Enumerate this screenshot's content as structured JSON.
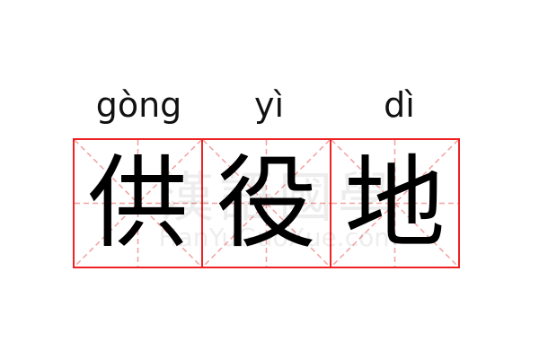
{
  "characters": [
    {
      "hanzi": "供",
      "pinyin": "gòng"
    },
    {
      "hanzi": "役",
      "pinyin": "yì"
    },
    {
      "hanzi": "地",
      "pinyin": "dì"
    }
  ],
  "watermark": {
    "chinese": "漢語國學",
    "latin": "HanYuGuoXue.com"
  },
  "colors": {
    "grid_border": "#ee2222",
    "guide_lines": "#f4a0a0",
    "text": "#000000"
  }
}
